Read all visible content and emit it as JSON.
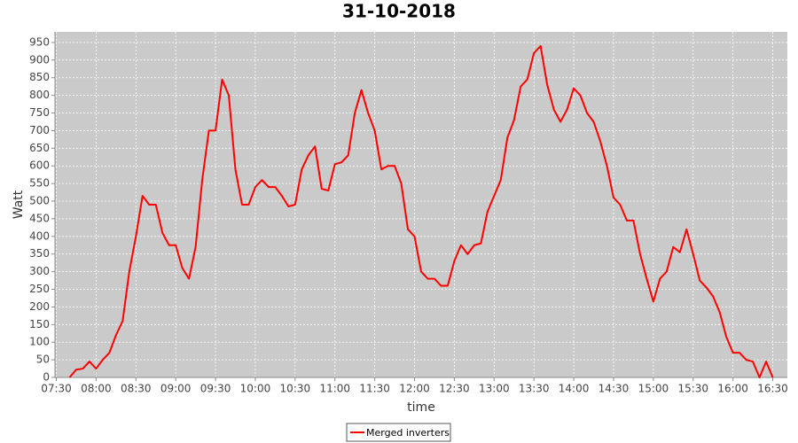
{
  "chart_data": {
    "type": "line",
    "title": "31-10-2018",
    "x_label": "time",
    "y_label": "Watt",
    "x": [
      "07:40",
      "07:45",
      "07:50",
      "07:55",
      "08:00",
      "08:05",
      "08:10",
      "08:15",
      "08:20",
      "08:25",
      "08:30",
      "08:35",
      "08:40",
      "08:45",
      "08:50",
      "08:55",
      "09:00",
      "09:05",
      "09:10",
      "09:15",
      "09:20",
      "09:25",
      "09:30",
      "09:35",
      "09:40",
      "09:45",
      "09:50",
      "09:55",
      "10:00",
      "10:05",
      "10:10",
      "10:15",
      "10:20",
      "10:25",
      "10:30",
      "10:35",
      "10:40",
      "10:45",
      "10:50",
      "10:55",
      "11:00",
      "11:05",
      "11:10",
      "11:15",
      "11:20",
      "11:25",
      "11:30",
      "11:35",
      "11:40",
      "11:45",
      "11:50",
      "11:55",
      "12:00",
      "12:05",
      "12:10",
      "12:15",
      "12:20",
      "12:25",
      "12:30",
      "12:35",
      "12:40",
      "12:45",
      "12:50",
      "12:55",
      "13:00",
      "13:05",
      "13:10",
      "13:15",
      "13:20",
      "13:25",
      "13:30",
      "13:35",
      "13:40",
      "13:45",
      "13:50",
      "13:55",
      "14:00",
      "14:05",
      "14:10",
      "14:15",
      "14:20",
      "14:25",
      "14:30",
      "14:35",
      "14:40",
      "14:45",
      "14:50",
      "14:55",
      "15:00",
      "15:05",
      "15:10",
      "15:15",
      "15:20",
      "15:25",
      "15:30",
      "15:35",
      "15:40",
      "15:45",
      "15:50",
      "15:55",
      "16:00",
      "16:05",
      "16:10",
      "16:15",
      "16:20",
      "16:25",
      "16:30"
    ],
    "series": [
      {
        "name": "Merged inverters",
        "color": "#ff0000",
        "values": [
          0,
          22,
          25,
          45,
          25,
          50,
          70,
          120,
          160,
          300,
          400,
          515,
          490,
          490,
          410,
          375,
          375,
          310,
          280,
          370,
          560,
          700,
          700,
          845,
          800,
          590,
          490,
          490,
          540,
          560,
          540,
          540,
          515,
          485,
          490,
          590,
          630,
          655,
          535,
          530,
          605,
          610,
          630,
          750,
          815,
          750,
          700,
          590,
          600,
          600,
          550,
          420,
          400,
          300,
          280,
          280,
          260,
          260,
          330,
          375,
          350,
          375,
          380,
          470,
          515,
          560,
          680,
          730,
          825,
          845,
          920,
          940,
          830,
          760,
          725,
          760,
          820,
          800,
          750,
          725,
          670,
          600,
          510,
          490,
          445,
          445,
          350,
          280,
          215,
          280,
          300,
          370,
          355,
          420,
          350,
          275,
          255,
          230,
          185,
          115,
          70,
          70,
          50,
          45,
          0,
          45,
          0
        ]
      }
    ],
    "xlim": [
      "07:29",
      "16:41"
    ],
    "xticks": [
      "07:30",
      "08:00",
      "08:30",
      "09:00",
      "09:30",
      "10:00",
      "10:30",
      "11:00",
      "11:30",
      "12:00",
      "12:30",
      "13:00",
      "13:30",
      "14:00",
      "14:30",
      "15:00",
      "15:30",
      "16:00",
      "16:30"
    ],
    "ylim": [
      0,
      980
    ],
    "yticks": [
      0,
      50,
      100,
      150,
      200,
      250,
      300,
      350,
      400,
      450,
      500,
      550,
      600,
      650,
      700,
      750,
      800,
      850,
      900,
      950
    ],
    "grid": true
  }
}
